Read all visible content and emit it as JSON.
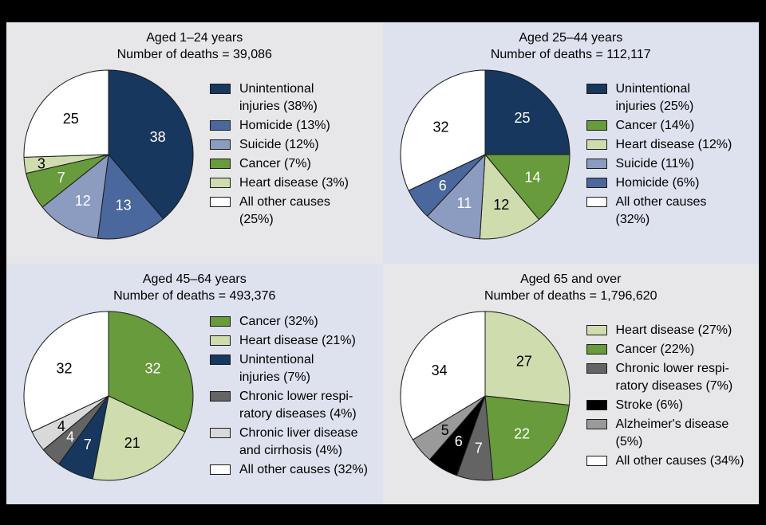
{
  "figure": {
    "frame_color": "#000000",
    "slice_border_color": "#1a1a1a",
    "panel_bg_gray": "#e7e7e9",
    "panel_bg_blue": "#dde2ee"
  },
  "chart_data": [
    {
      "type": "pie",
      "title": "Aged 1–24 years",
      "subtitle": "Number of deaths = 39,086",
      "panel_bg": "#e7e7e9",
      "legend_position": "right",
      "slices": [
        {
          "label": "Unintentional\ninjuries (38%)",
          "value": 38,
          "color": "#17375e",
          "text_color": "#ffffff"
        },
        {
          "label": "Homicide (13%)",
          "value": 13,
          "color": "#4a689e",
          "text_color": "#ffffff"
        },
        {
          "label": "Suicide (12%)",
          "value": 12,
          "color": "#8c9cc0",
          "text_color": "#ffffff"
        },
        {
          "label": "Cancer (7%)",
          "value": 7,
          "color": "#679b3b",
          "text_color": "#ffffff"
        },
        {
          "label": "Heart disease (3%)",
          "value": 3,
          "color": "#cfddae",
          "text_color": "#000000",
          "label_r": 0.8
        },
        {
          "label": "All other causes\n(25%)",
          "value": 25,
          "color": "#ffffff",
          "text_color": "#000000"
        }
      ]
    },
    {
      "type": "pie",
      "title": "Aged 25–44 years",
      "subtitle": "Number of deaths = 112,117",
      "panel_bg": "#dde2ee",
      "legend_position": "right",
      "slices": [
        {
          "label": "Unintentional\ninjuries (25%)",
          "value": 25,
          "color": "#17375e",
          "text_color": "#ffffff"
        },
        {
          "label": "Cancer (14%)",
          "value": 14,
          "color": "#679b3b",
          "text_color": "#ffffff"
        },
        {
          "label": "Heart disease (12%)",
          "value": 12,
          "color": "#cfddae",
          "text_color": "#000000"
        },
        {
          "label": "Suicide (11%)",
          "value": 11,
          "color": "#8c9cc0",
          "text_color": "#ffffff"
        },
        {
          "label": "Homicide (6%)",
          "value": 6,
          "color": "#4a689e",
          "text_color": "#ffffff"
        },
        {
          "label": "All other causes\n(32%)",
          "value": 32,
          "color": "#ffffff",
          "text_color": "#000000"
        }
      ]
    },
    {
      "type": "pie",
      "title": "Aged 45–64 years",
      "subtitle": "Number of deaths = 493,376",
      "panel_bg": "#dde2ee",
      "legend_position": "right",
      "slices": [
        {
          "label": "Cancer (32%)",
          "value": 32,
          "color": "#679b3b",
          "text_color": "#ffffff"
        },
        {
          "label": "Heart disease (21%)",
          "value": 21,
          "color": "#cfddae",
          "text_color": "#000000"
        },
        {
          "label": "Unintentional\ninjuries (7%)",
          "value": 7,
          "color": "#17375e",
          "text_color": "#ffffff"
        },
        {
          "label": "Chronic lower respi-\nratory diseases (4%)",
          "value": 4,
          "color": "#646464",
          "text_color": "#ffffff",
          "label_r": 0.66
        },
        {
          "label": "Chronic liver disease\nand cirrhosis (4%)",
          "value": 4,
          "color": "#d9d9d9",
          "text_color": "#000000",
          "label_r": 0.66
        },
        {
          "label": "All other causes (32%)",
          "value": 32,
          "color": "#ffffff",
          "text_color": "#000000"
        }
      ]
    },
    {
      "type": "pie",
      "title": "Aged 65 and over",
      "subtitle": "Number of deaths = 1,796,620",
      "panel_bg": "#e7e7e9",
      "legend_position": "right",
      "slices": [
        {
          "label": "Heart disease (27%)",
          "value": 27,
          "color": "#cfddae",
          "text_color": "#000000"
        },
        {
          "label": "Cancer (22%)",
          "value": 22,
          "color": "#679b3b",
          "text_color": "#ffffff"
        },
        {
          "label": "Chronic lower respi-\nratory diseases (7%)",
          "value": 7,
          "color": "#646464",
          "text_color": "#ffffff"
        },
        {
          "label": "Stroke (6%)",
          "value": 6,
          "color": "#000000",
          "text_color": "#ffffff"
        },
        {
          "label": "Alzheimer's disease\n(5%)",
          "value": 5,
          "color": "#9a9a9a",
          "text_color": "#000000"
        },
        {
          "label": "All other causes (34%)",
          "value": 34,
          "color": "#ffffff",
          "text_color": "#000000"
        }
      ]
    }
  ]
}
